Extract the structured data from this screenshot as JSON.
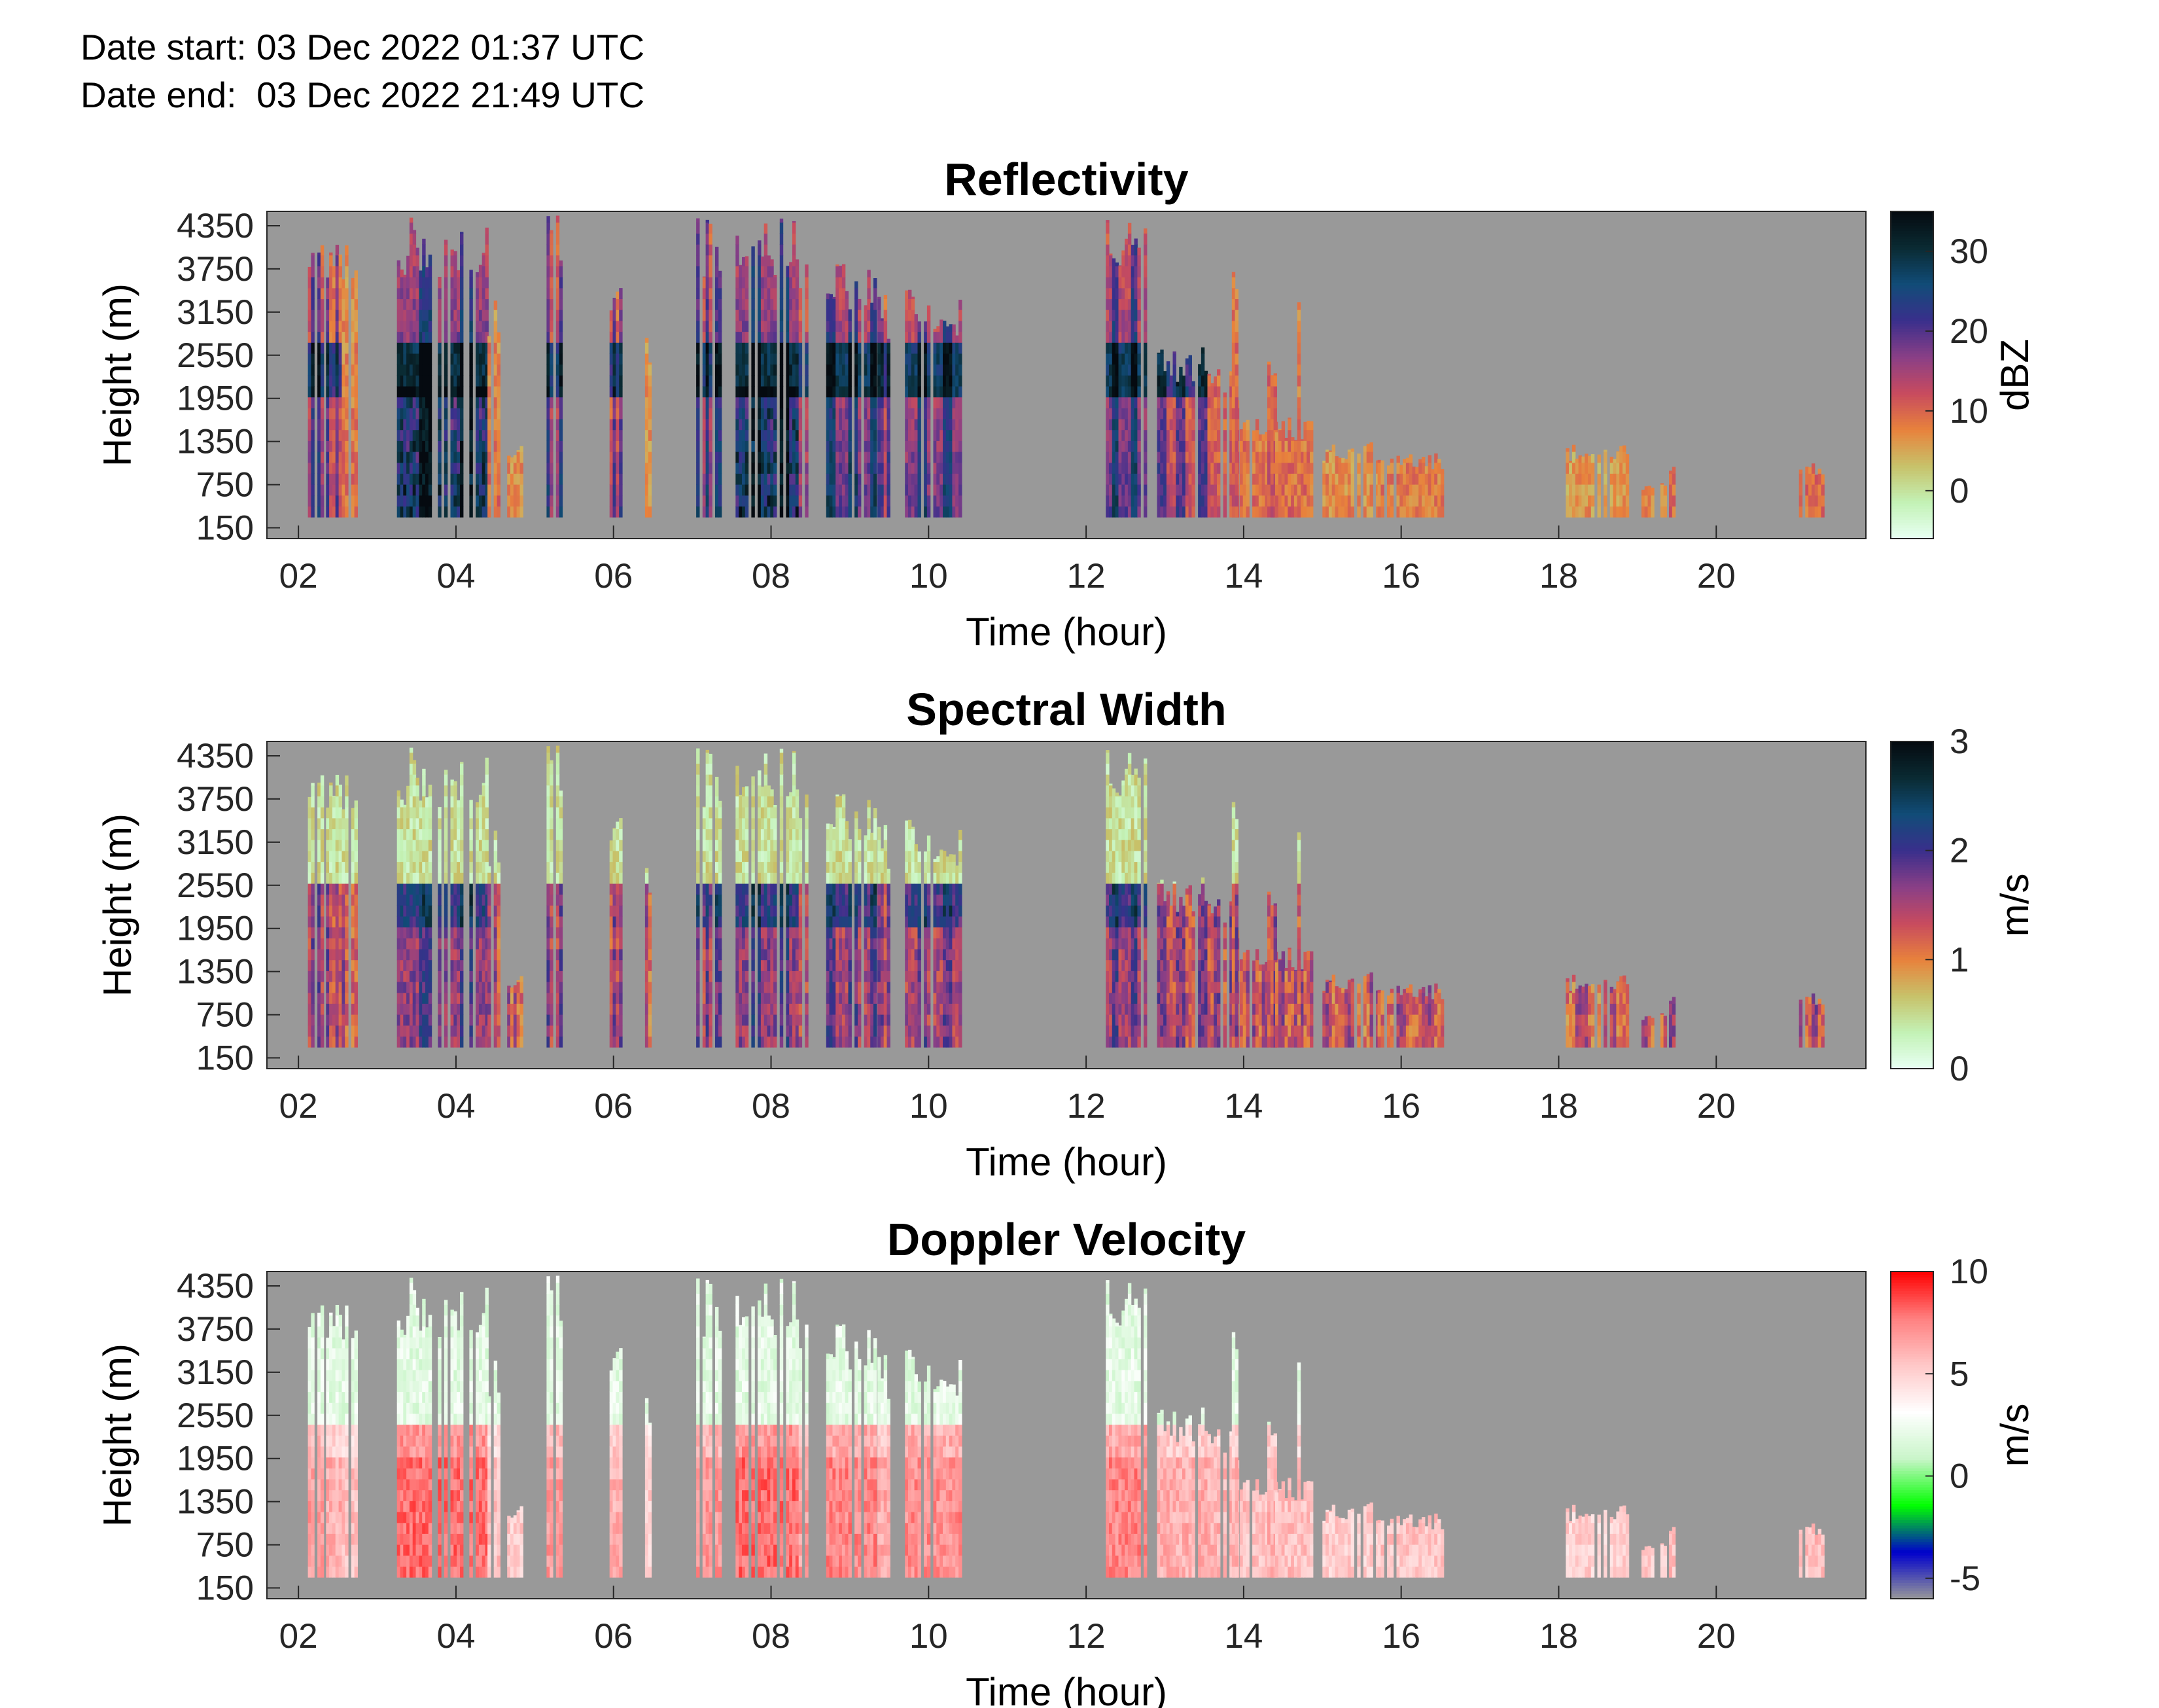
{
  "header": {
    "date_start": "Date start: 03 Dec 2022 01:37 UTC",
    "date_end": "Date end:  03 Dec 2022 21:49 UTC"
  },
  "chart_data": [
    {
      "type": "heatmap",
      "title": "Reflectivity",
      "xlabel": "Time (hour)",
      "ylabel": "Height (m)",
      "colorbar_label": "dBZ",
      "xlim": [
        1.6,
        21.9
      ],
      "ylim": [
        0,
        4550
      ],
      "xticks": [
        2,
        4,
        6,
        8,
        10,
        12,
        14,
        16,
        18,
        20
      ],
      "xtick_labels": [
        "02",
        "04",
        "06",
        "08",
        "10",
        "12",
        "14",
        "16",
        "18",
        "20"
      ],
      "yticks": [
        150,
        750,
        1350,
        1950,
        2550,
        3150,
        3750,
        4350
      ],
      "clim": [
        -6,
        35
      ],
      "cticks": [
        0,
        10,
        20,
        30
      ],
      "colormap": [
        "#e8fff4",
        "#c3f2b6",
        "#c7c26a",
        "#e8823c",
        "#c84b5e",
        "#8a3f86",
        "#3a2f8c",
        "#114c78",
        "#0a2b33",
        "#050a10"
      ],
      "background": "#999999"
    },
    {
      "type": "heatmap",
      "title": "Spectral Width",
      "xlabel": "Time (hour)",
      "ylabel": "Height (m)",
      "colorbar_label": "m/s",
      "xlim": [
        1.6,
        21.9
      ],
      "ylim": [
        0,
        4550
      ],
      "xticks": [
        2,
        4,
        6,
        8,
        10,
        12,
        14,
        16,
        18,
        20
      ],
      "xtick_labels": [
        "02",
        "04",
        "06",
        "08",
        "10",
        "12",
        "14",
        "16",
        "18",
        "20"
      ],
      "yticks": [
        150,
        750,
        1350,
        1950,
        2550,
        3150,
        3750,
        4350
      ],
      "clim": [
        0,
        3
      ],
      "cticks": [
        0,
        1,
        2,
        3
      ],
      "colormap": [
        "#e8fff4",
        "#c3f2b6",
        "#c7c26a",
        "#e8823c",
        "#c84b5e",
        "#8a3f86",
        "#3a2f8c",
        "#114c78",
        "#0a2b33",
        "#050a10"
      ],
      "background": "#999999"
    },
    {
      "type": "heatmap",
      "title": "Doppler Velocity",
      "xlabel": "Time (hour)",
      "ylabel": "Height (m)",
      "colorbar_label": "m/s",
      "xlim": [
        1.6,
        21.9
      ],
      "ylim": [
        0,
        4550
      ],
      "xticks": [
        2,
        4,
        6,
        8,
        10,
        12,
        14,
        16,
        18,
        20
      ],
      "xtick_labels": [
        "02",
        "04",
        "06",
        "08",
        "10",
        "12",
        "14",
        "16",
        "18",
        "20"
      ],
      "yticks": [
        150,
        750,
        1350,
        1950,
        2550,
        3150,
        3750,
        4350
      ],
      "clim": [
        -6,
        10
      ],
      "cticks": [
        -5,
        0,
        5,
        10
      ],
      "colormap": [
        "#999999",
        "#0000cc",
        "#00ff00",
        "#c9f5c9",
        "#ffffff",
        "#ffc8c8",
        "#ff8080",
        "#ff0000"
      ],
      "background": "#999999"
    }
  ]
}
